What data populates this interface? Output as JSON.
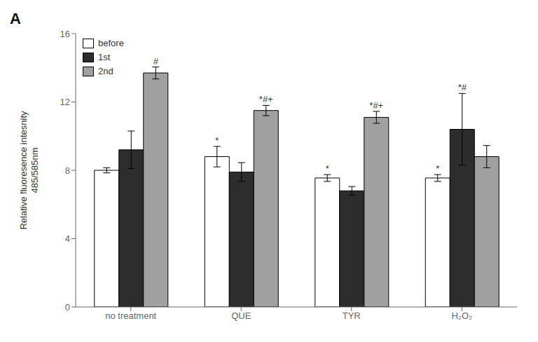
{
  "chart_data": {
    "type": "bar",
    "title": "A",
    "categories": [
      "no treatment",
      "QUE",
      "TYR",
      "H₂O₂"
    ],
    "series": [
      {
        "name": "before",
        "color": "white",
        "values": [
          8.0,
          8.8,
          7.55,
          7.55
        ],
        "errors": [
          0.15,
          0.6,
          0.2,
          0.2
        ],
        "annotations": [
          null,
          "*",
          "*",
          "*"
        ]
      },
      {
        "name": "1st",
        "color": "#2d2d2d",
        "values": [
          9.2,
          7.9,
          6.8,
          10.4
        ],
        "errors": [
          1.1,
          0.55,
          0.25,
          2.1
        ],
        "annotations": [
          null,
          null,
          null,
          "*#"
        ]
      },
      {
        "name": "2nd",
        "color": "#a0a0a0",
        "values": [
          13.7,
          11.5,
          11.1,
          8.8
        ],
        "errors": [
          0.35,
          0.3,
          0.35,
          0.65
        ],
        "annotations": [
          "#",
          "*#+",
          "*#+",
          null
        ]
      }
    ],
    "ylabel": "Relative fluoresence intesnity\n485/585nm",
    "ylim": [
      0,
      16
    ],
    "yticks": [
      0,
      4,
      8,
      12,
      16
    ],
    "grid": false,
    "legend": "upper left"
  }
}
